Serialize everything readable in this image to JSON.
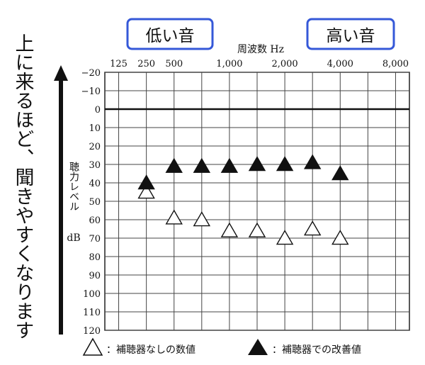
{
  "chart_data": {
    "type": "scatter",
    "title": "",
    "xlabel": "周波数 Hz",
    "ylabel": "聴力レベル dB",
    "x_categories": [
      "125",
      "250",
      "500",
      "",
      "1,000",
      "",
      "2,000",
      "",
      "4,000",
      "",
      "8,000"
    ],
    "x_values": [
      125,
      250,
      500,
      750,
      1000,
      1500,
      2000,
      3000,
      4000,
      6000,
      8000
    ],
    "y_ticks": [
      "−20",
      "−10",
      "0",
      "10",
      "20",
      "30",
      "40",
      "50",
      "60",
      "70",
      "80",
      "90",
      "100",
      "110",
      "120"
    ],
    "ylim": [
      -20,
      120
    ],
    "y_inverted": true,
    "grid": true,
    "side_note": "上に来るほど、聞きやすくなります",
    "callouts": {
      "low": "低い音",
      "high": "高い音"
    },
    "series": [
      {
        "name": "補聴器なしの数値",
        "marker": "triangle-open",
        "points": [
          {
            "x": 250,
            "y": 45
          },
          {
            "x": 500,
            "y": 59
          },
          {
            "x": 750,
            "y": 60
          },
          {
            "x": 1000,
            "y": 66
          },
          {
            "x": 1500,
            "y": 66
          },
          {
            "x": 2000,
            "y": 70
          },
          {
            "x": 3000,
            "y": 65
          },
          {
            "x": 4000,
            "y": 70
          }
        ]
      },
      {
        "name": "補聴器での改善値",
        "marker": "triangle-filled",
        "points": [
          {
            "x": 250,
            "y": 40
          },
          {
            "x": 500,
            "y": 31
          },
          {
            "x": 750,
            "y": 31
          },
          {
            "x": 1000,
            "y": 31
          },
          {
            "x": 1500,
            "y": 30
          },
          {
            "x": 2000,
            "y": 30
          },
          {
            "x": 3000,
            "y": 29
          },
          {
            "x": 4000,
            "y": 35
          }
        ]
      }
    ]
  },
  "colors": {
    "callout_border": "#3558d8",
    "ink": "#111111",
    "grid": "#444444"
  }
}
